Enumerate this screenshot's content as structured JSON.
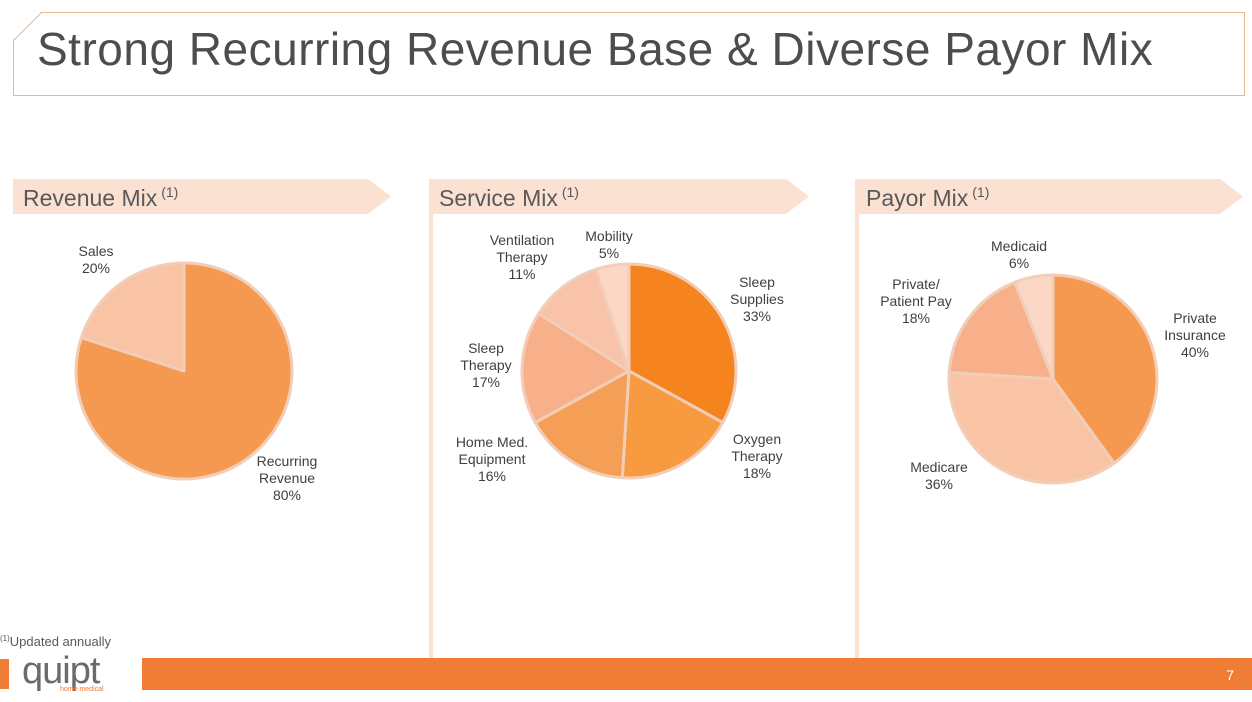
{
  "slide": {
    "title": "Strong Recurring Revenue Base & Diverse Payor Mix",
    "footnote_mark": "(1)",
    "footnote_text": "Updated annually",
    "logo_text": "quipt",
    "logo_subtext": "home medical",
    "page_number": "7"
  },
  "colors": {
    "accent": "#ef7d35",
    "banner": "#fbe1d2",
    "title_border": "#f2b48a"
  },
  "chart_data": [
    {
      "type": "pie",
      "title": "Revenue Mix",
      "title_note": "(1)",
      "labels": [
        "Recurring Revenue",
        "Sales"
      ],
      "label_lines": [
        [
          "Recurring",
          "Revenue"
        ],
        [
          "Sales"
        ]
      ],
      "value_labels": [
        "80%",
        "20%"
      ],
      "values": [
        80,
        20
      ],
      "colors": [
        "#f4994f",
        "#f9c3a6"
      ]
    },
    {
      "type": "pie",
      "title": "Service Mix",
      "title_note": "(1)",
      "labels": [
        "Sleep Supplies",
        "Oxygen Therapy",
        "Home Med. Equipment",
        "Sleep Therapy",
        "Ventilation Therapy",
        "Mobility"
      ],
      "label_lines": [
        [
          "Sleep",
          "Supplies"
        ],
        [
          "Oxygen",
          "Therapy"
        ],
        [
          "Home Med.",
          "Equipment"
        ],
        [
          "Sleep",
          "Therapy"
        ],
        [
          "Ventilation",
          "Therapy"
        ],
        [
          "Mobility"
        ]
      ],
      "value_labels": [
        "33%",
        "18%",
        "16%",
        "17%",
        "11%",
        "5%"
      ],
      "values": [
        33,
        18,
        16,
        17,
        11,
        5
      ],
      "colors": [
        "#f5841f",
        "#f89a3f",
        "#f59e56",
        "#f8b08a",
        "#f8c3a9",
        "#fbd7c6"
      ]
    },
    {
      "type": "pie",
      "title": "Payor Mix",
      "title_note": "(1)",
      "labels": [
        "Private Insurance",
        "Medicare",
        "Private/ Patient Pay",
        "Medicaid"
      ],
      "label_lines": [
        [
          "Private",
          "Insurance"
        ],
        [
          "Medicare"
        ],
        [
          "Private/",
          "Patient Pay"
        ],
        [
          "Medicaid"
        ]
      ],
      "value_labels": [
        "40%",
        "36%",
        "18%",
        "6%"
      ],
      "values": [
        40,
        36,
        18,
        6
      ],
      "colors": [
        "#f4994f",
        "#f9c3a6",
        "#f8b08a",
        "#fbd7c6"
      ]
    }
  ]
}
